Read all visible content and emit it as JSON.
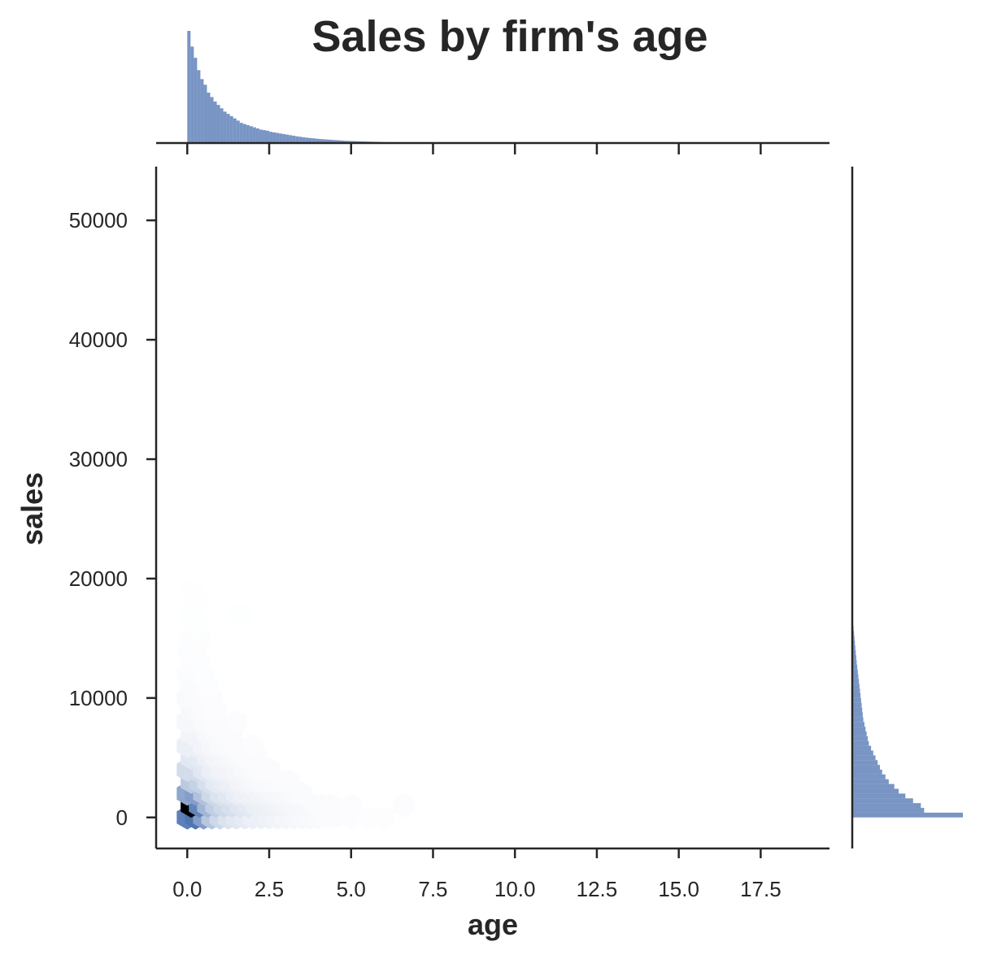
{
  "chart_data": {
    "type": "hexbin-joint",
    "title": "Sales by firm's age",
    "xlabel": "age",
    "ylabel": "sales",
    "xlim": [
      -0.95,
      19.6
    ],
    "ylim": [
      -2600,
      54500
    ],
    "xticks": [
      0.0,
      2.5,
      5.0,
      7.5,
      10.0,
      12.5,
      15.0,
      17.5
    ],
    "xtick_labels": [
      "0.0",
      "2.5",
      "5.0",
      "7.5",
      "10.0",
      "12.5",
      "15.0",
      "17.5"
    ],
    "yticks": [
      0,
      10000,
      20000,
      30000,
      40000,
      50000
    ],
    "ytick_labels": [
      "0",
      "10000",
      "20000",
      "30000",
      "40000",
      "50000"
    ],
    "color": "#4c72b0",
    "hexbins": [
      {
        "x": 0.0,
        "y": 0,
        "d": 0.72
      },
      {
        "x": 0.25,
        "y": 0,
        "d": 0.78
      },
      {
        "x": 0.5,
        "y": 0,
        "d": 0.55
      },
      {
        "x": 0.75,
        "y": 0,
        "d": 0.32
      },
      {
        "x": 1.0,
        "y": 0,
        "d": 0.22
      },
      {
        "x": 1.25,
        "y": 0,
        "d": 0.16
      },
      {
        "x": 1.5,
        "y": 0,
        "d": 0.13
      },
      {
        "x": 1.75,
        "y": 0,
        "d": 0.11
      },
      {
        "x": 2.0,
        "y": 0,
        "d": 0.09
      },
      {
        "x": 2.25,
        "y": 0,
        "d": 0.08
      },
      {
        "x": 2.5,
        "y": 0,
        "d": 0.07
      },
      {
        "x": 2.75,
        "y": 0,
        "d": 0.06
      },
      {
        "x": 3.0,
        "y": 0,
        "d": 0.05
      },
      {
        "x": 3.25,
        "y": 0,
        "d": 0.045
      },
      {
        "x": 3.5,
        "y": 0,
        "d": 0.04
      },
      {
        "x": 3.75,
        "y": 0,
        "d": 0.035
      },
      {
        "x": 4.0,
        "y": 0,
        "d": 0.03
      },
      {
        "x": 4.25,
        "y": 0,
        "d": 0.025
      },
      {
        "x": 4.5,
        "y": 0,
        "d": 0.02
      },
      {
        "x": 5.0,
        "y": 0,
        "d": 0.015
      },
      {
        "x": 5.5,
        "y": 0,
        "d": 0.012
      },
      {
        "x": 6.0,
        "y": 0,
        "d": 0.01
      },
      {
        "x": 0.12,
        "y": 1000,
        "d": 1.0
      },
      {
        "x": 0.37,
        "y": 1000,
        "d": 0.7
      },
      {
        "x": 0.62,
        "y": 1000,
        "d": 0.42
      },
      {
        "x": 0.87,
        "y": 1000,
        "d": 0.28
      },
      {
        "x": 1.12,
        "y": 1000,
        "d": 0.22
      },
      {
        "x": 1.37,
        "y": 1000,
        "d": 0.18
      },
      {
        "x": 1.62,
        "y": 1000,
        "d": 0.14
      },
      {
        "x": 1.87,
        "y": 1000,
        "d": 0.12
      },
      {
        "x": 2.12,
        "y": 1000,
        "d": 0.09
      },
      {
        "x": 2.37,
        "y": 1000,
        "d": 0.08
      },
      {
        "x": 2.62,
        "y": 1000,
        "d": 0.07
      },
      {
        "x": 2.87,
        "y": 1000,
        "d": 0.06
      },
      {
        "x": 3.12,
        "y": 1000,
        "d": 0.05
      },
      {
        "x": 3.37,
        "y": 1000,
        "d": 0.045
      },
      {
        "x": 3.62,
        "y": 1000,
        "d": 0.04
      },
      {
        "x": 3.87,
        "y": 1000,
        "d": 0.03
      },
      {
        "x": 4.12,
        "y": 1000,
        "d": 0.025
      },
      {
        "x": 4.37,
        "y": 1000,
        "d": 0.02
      },
      {
        "x": 5.0,
        "y": 1000,
        "d": 0.015
      },
      {
        "x": 6.6,
        "y": 1000,
        "d": 0.015
      },
      {
        "x": 0.0,
        "y": 2000,
        "d": 0.5
      },
      {
        "x": 0.25,
        "y": 2000,
        "d": 0.55
      },
      {
        "x": 0.5,
        "y": 2000,
        "d": 0.35
      },
      {
        "x": 0.75,
        "y": 2000,
        "d": 0.22
      },
      {
        "x": 1.0,
        "y": 2000,
        "d": 0.16
      },
      {
        "x": 1.25,
        "y": 2000,
        "d": 0.13
      },
      {
        "x": 1.5,
        "y": 2000,
        "d": 0.1
      },
      {
        "x": 1.75,
        "y": 2000,
        "d": 0.08
      },
      {
        "x": 2.0,
        "y": 2000,
        "d": 0.07
      },
      {
        "x": 2.25,
        "y": 2000,
        "d": 0.06
      },
      {
        "x": 2.5,
        "y": 2000,
        "d": 0.05
      },
      {
        "x": 2.75,
        "y": 2000,
        "d": 0.045
      },
      {
        "x": 3.0,
        "y": 2000,
        "d": 0.04
      },
      {
        "x": 3.25,
        "y": 2000,
        "d": 0.03
      },
      {
        "x": 3.5,
        "y": 2000,
        "d": 0.025
      },
      {
        "x": 0.12,
        "y": 3000,
        "d": 0.3
      },
      {
        "x": 0.37,
        "y": 3000,
        "d": 0.26
      },
      {
        "x": 0.62,
        "y": 3000,
        "d": 0.18
      },
      {
        "x": 0.87,
        "y": 3000,
        "d": 0.12
      },
      {
        "x": 1.12,
        "y": 3000,
        "d": 0.1
      },
      {
        "x": 1.37,
        "y": 3000,
        "d": 0.08
      },
      {
        "x": 1.62,
        "y": 3000,
        "d": 0.06
      },
      {
        "x": 1.87,
        "y": 3000,
        "d": 0.05
      },
      {
        "x": 2.12,
        "y": 3000,
        "d": 0.04
      },
      {
        "x": 2.37,
        "y": 3000,
        "d": 0.035
      },
      {
        "x": 2.62,
        "y": 3000,
        "d": 0.03
      },
      {
        "x": 2.87,
        "y": 3000,
        "d": 0.025
      },
      {
        "x": 3.12,
        "y": 3000,
        "d": 0.02
      },
      {
        "x": 0.0,
        "y": 4000,
        "d": 0.2
      },
      {
        "x": 0.25,
        "y": 4000,
        "d": 0.2
      },
      {
        "x": 0.5,
        "y": 4000,
        "d": 0.13
      },
      {
        "x": 0.75,
        "y": 4000,
        "d": 0.09
      },
      {
        "x": 1.0,
        "y": 4000,
        "d": 0.07
      },
      {
        "x": 1.25,
        "y": 4000,
        "d": 0.06
      },
      {
        "x": 1.5,
        "y": 4000,
        "d": 0.05
      },
      {
        "x": 1.75,
        "y": 4000,
        "d": 0.04
      },
      {
        "x": 2.0,
        "y": 4000,
        "d": 0.03
      },
      {
        "x": 2.25,
        "y": 4000,
        "d": 0.025
      },
      {
        "x": 2.5,
        "y": 4000,
        "d": 0.02
      },
      {
        "x": 0.12,
        "y": 5000,
        "d": 0.13
      },
      {
        "x": 0.37,
        "y": 5000,
        "d": 0.12
      },
      {
        "x": 0.62,
        "y": 5000,
        "d": 0.08
      },
      {
        "x": 0.87,
        "y": 5000,
        "d": 0.06
      },
      {
        "x": 1.12,
        "y": 5000,
        "d": 0.05
      },
      {
        "x": 1.37,
        "y": 5000,
        "d": 0.04
      },
      {
        "x": 1.62,
        "y": 5000,
        "d": 0.03
      },
      {
        "x": 1.87,
        "y": 5000,
        "d": 0.025
      },
      {
        "x": 2.12,
        "y": 5000,
        "d": 0.02
      },
      {
        "x": 0.0,
        "y": 6000,
        "d": 0.09
      },
      {
        "x": 0.25,
        "y": 6000,
        "d": 0.09
      },
      {
        "x": 0.5,
        "y": 6000,
        "d": 0.06
      },
      {
        "x": 0.75,
        "y": 6000,
        "d": 0.045
      },
      {
        "x": 1.0,
        "y": 6000,
        "d": 0.035
      },
      {
        "x": 1.25,
        "y": 6000,
        "d": 0.03
      },
      {
        "x": 1.5,
        "y": 6000,
        "d": 0.02
      },
      {
        "x": 2.0,
        "y": 6000,
        "d": 0.015
      },
      {
        "x": 0.12,
        "y": 7000,
        "d": 0.06
      },
      {
        "x": 0.37,
        "y": 7000,
        "d": 0.06
      },
      {
        "x": 0.62,
        "y": 7000,
        "d": 0.04
      },
      {
        "x": 0.87,
        "y": 7000,
        "d": 0.03
      },
      {
        "x": 1.12,
        "y": 7000,
        "d": 0.025
      },
      {
        "x": 1.37,
        "y": 7000,
        "d": 0.02
      },
      {
        "x": 0.0,
        "y": 8000,
        "d": 0.045
      },
      {
        "x": 0.25,
        "y": 8000,
        "d": 0.045
      },
      {
        "x": 0.5,
        "y": 8000,
        "d": 0.03
      },
      {
        "x": 0.75,
        "y": 8000,
        "d": 0.025
      },
      {
        "x": 1.0,
        "y": 8000,
        "d": 0.02
      },
      {
        "x": 1.5,
        "y": 8000,
        "d": 0.015
      },
      {
        "x": 0.12,
        "y": 9000,
        "d": 0.035
      },
      {
        "x": 0.37,
        "y": 9000,
        "d": 0.03
      },
      {
        "x": 0.62,
        "y": 9000,
        "d": 0.02
      },
      {
        "x": 0.87,
        "y": 9000,
        "d": 0.015
      },
      {
        "x": 0.0,
        "y": 10000,
        "d": 0.03
      },
      {
        "x": 0.25,
        "y": 10000,
        "d": 0.025
      },
      {
        "x": 0.5,
        "y": 10000,
        "d": 0.02
      },
      {
        "x": 0.75,
        "y": 10000,
        "d": 0.015
      },
      {
        "x": 0.12,
        "y": 11000,
        "d": 0.022
      },
      {
        "x": 0.37,
        "y": 11000,
        "d": 0.02
      },
      {
        "x": 0.62,
        "y": 11000,
        "d": 0.012
      },
      {
        "x": 0.0,
        "y": 12000,
        "d": 0.018
      },
      {
        "x": 0.25,
        "y": 12000,
        "d": 0.018
      },
      {
        "x": 0.5,
        "y": 12000,
        "d": 0.012
      },
      {
        "x": 0.12,
        "y": 13000,
        "d": 0.015
      },
      {
        "x": 0.37,
        "y": 13000,
        "d": 0.012
      },
      {
        "x": 0.0,
        "y": 14000,
        "d": 0.012
      },
      {
        "x": 0.25,
        "y": 14000,
        "d": 0.012
      },
      {
        "x": 0.12,
        "y": 15000,
        "d": 0.01
      },
      {
        "x": 0.37,
        "y": 15000,
        "d": 0.01
      },
      {
        "x": 0.25,
        "y": 16000,
        "d": 0.008
      },
      {
        "x": 0.12,
        "y": 17000,
        "d": 0.008
      },
      {
        "x": 1.62,
        "y": 17000,
        "d": 0.008
      },
      {
        "x": 0.25,
        "y": 18000,
        "d": 0.006
      },
      {
        "x": 0.12,
        "y": 19000,
        "d": 0.006
      }
    ],
    "x_histogram": {
      "bin_start": 0.0,
      "bin_width": 0.1,
      "heights": [
        1.0,
        0.86,
        0.76,
        0.65,
        0.57,
        0.52,
        0.45,
        0.41,
        0.37,
        0.34,
        0.31,
        0.28,
        0.26,
        0.24,
        0.22,
        0.2,
        0.18,
        0.17,
        0.16,
        0.15,
        0.14,
        0.13,
        0.12,
        0.115,
        0.11,
        0.1,
        0.095,
        0.09,
        0.085,
        0.08,
        0.075,
        0.07,
        0.065,
        0.06,
        0.056,
        0.052,
        0.048,
        0.045,
        0.042,
        0.039,
        0.036,
        0.034,
        0.032,
        0.03,
        0.028,
        0.026,
        0.024,
        0.022,
        0.02,
        0.019,
        0.018,
        0.017,
        0.016,
        0.015,
        0.014,
        0.013,
        0.012,
        0.011,
        0.01,
        0.009,
        0.008,
        0.008,
        0.007,
        0.007,
        0.006,
        0.006,
        0.005,
        0.005,
        0.004,
        0.004
      ]
    },
    "y_histogram": {
      "bin_start": 0,
      "bin_width": 400,
      "heights": [
        1.0,
        0.65,
        0.62,
        0.55,
        0.48,
        0.42,
        0.38,
        0.33,
        0.3,
        0.27,
        0.25,
        0.23,
        0.21,
        0.19,
        0.17,
        0.15,
        0.14,
        0.13,
        0.12,
        0.11,
        0.1,
        0.095,
        0.09,
        0.085,
        0.08,
        0.075,
        0.07,
        0.065,
        0.06,
        0.055,
        0.05,
        0.045,
        0.04,
        0.036,
        0.032,
        0.028,
        0.024,
        0.02,
        0.016,
        0.012,
        0.008,
        0.005
      ]
    }
  }
}
